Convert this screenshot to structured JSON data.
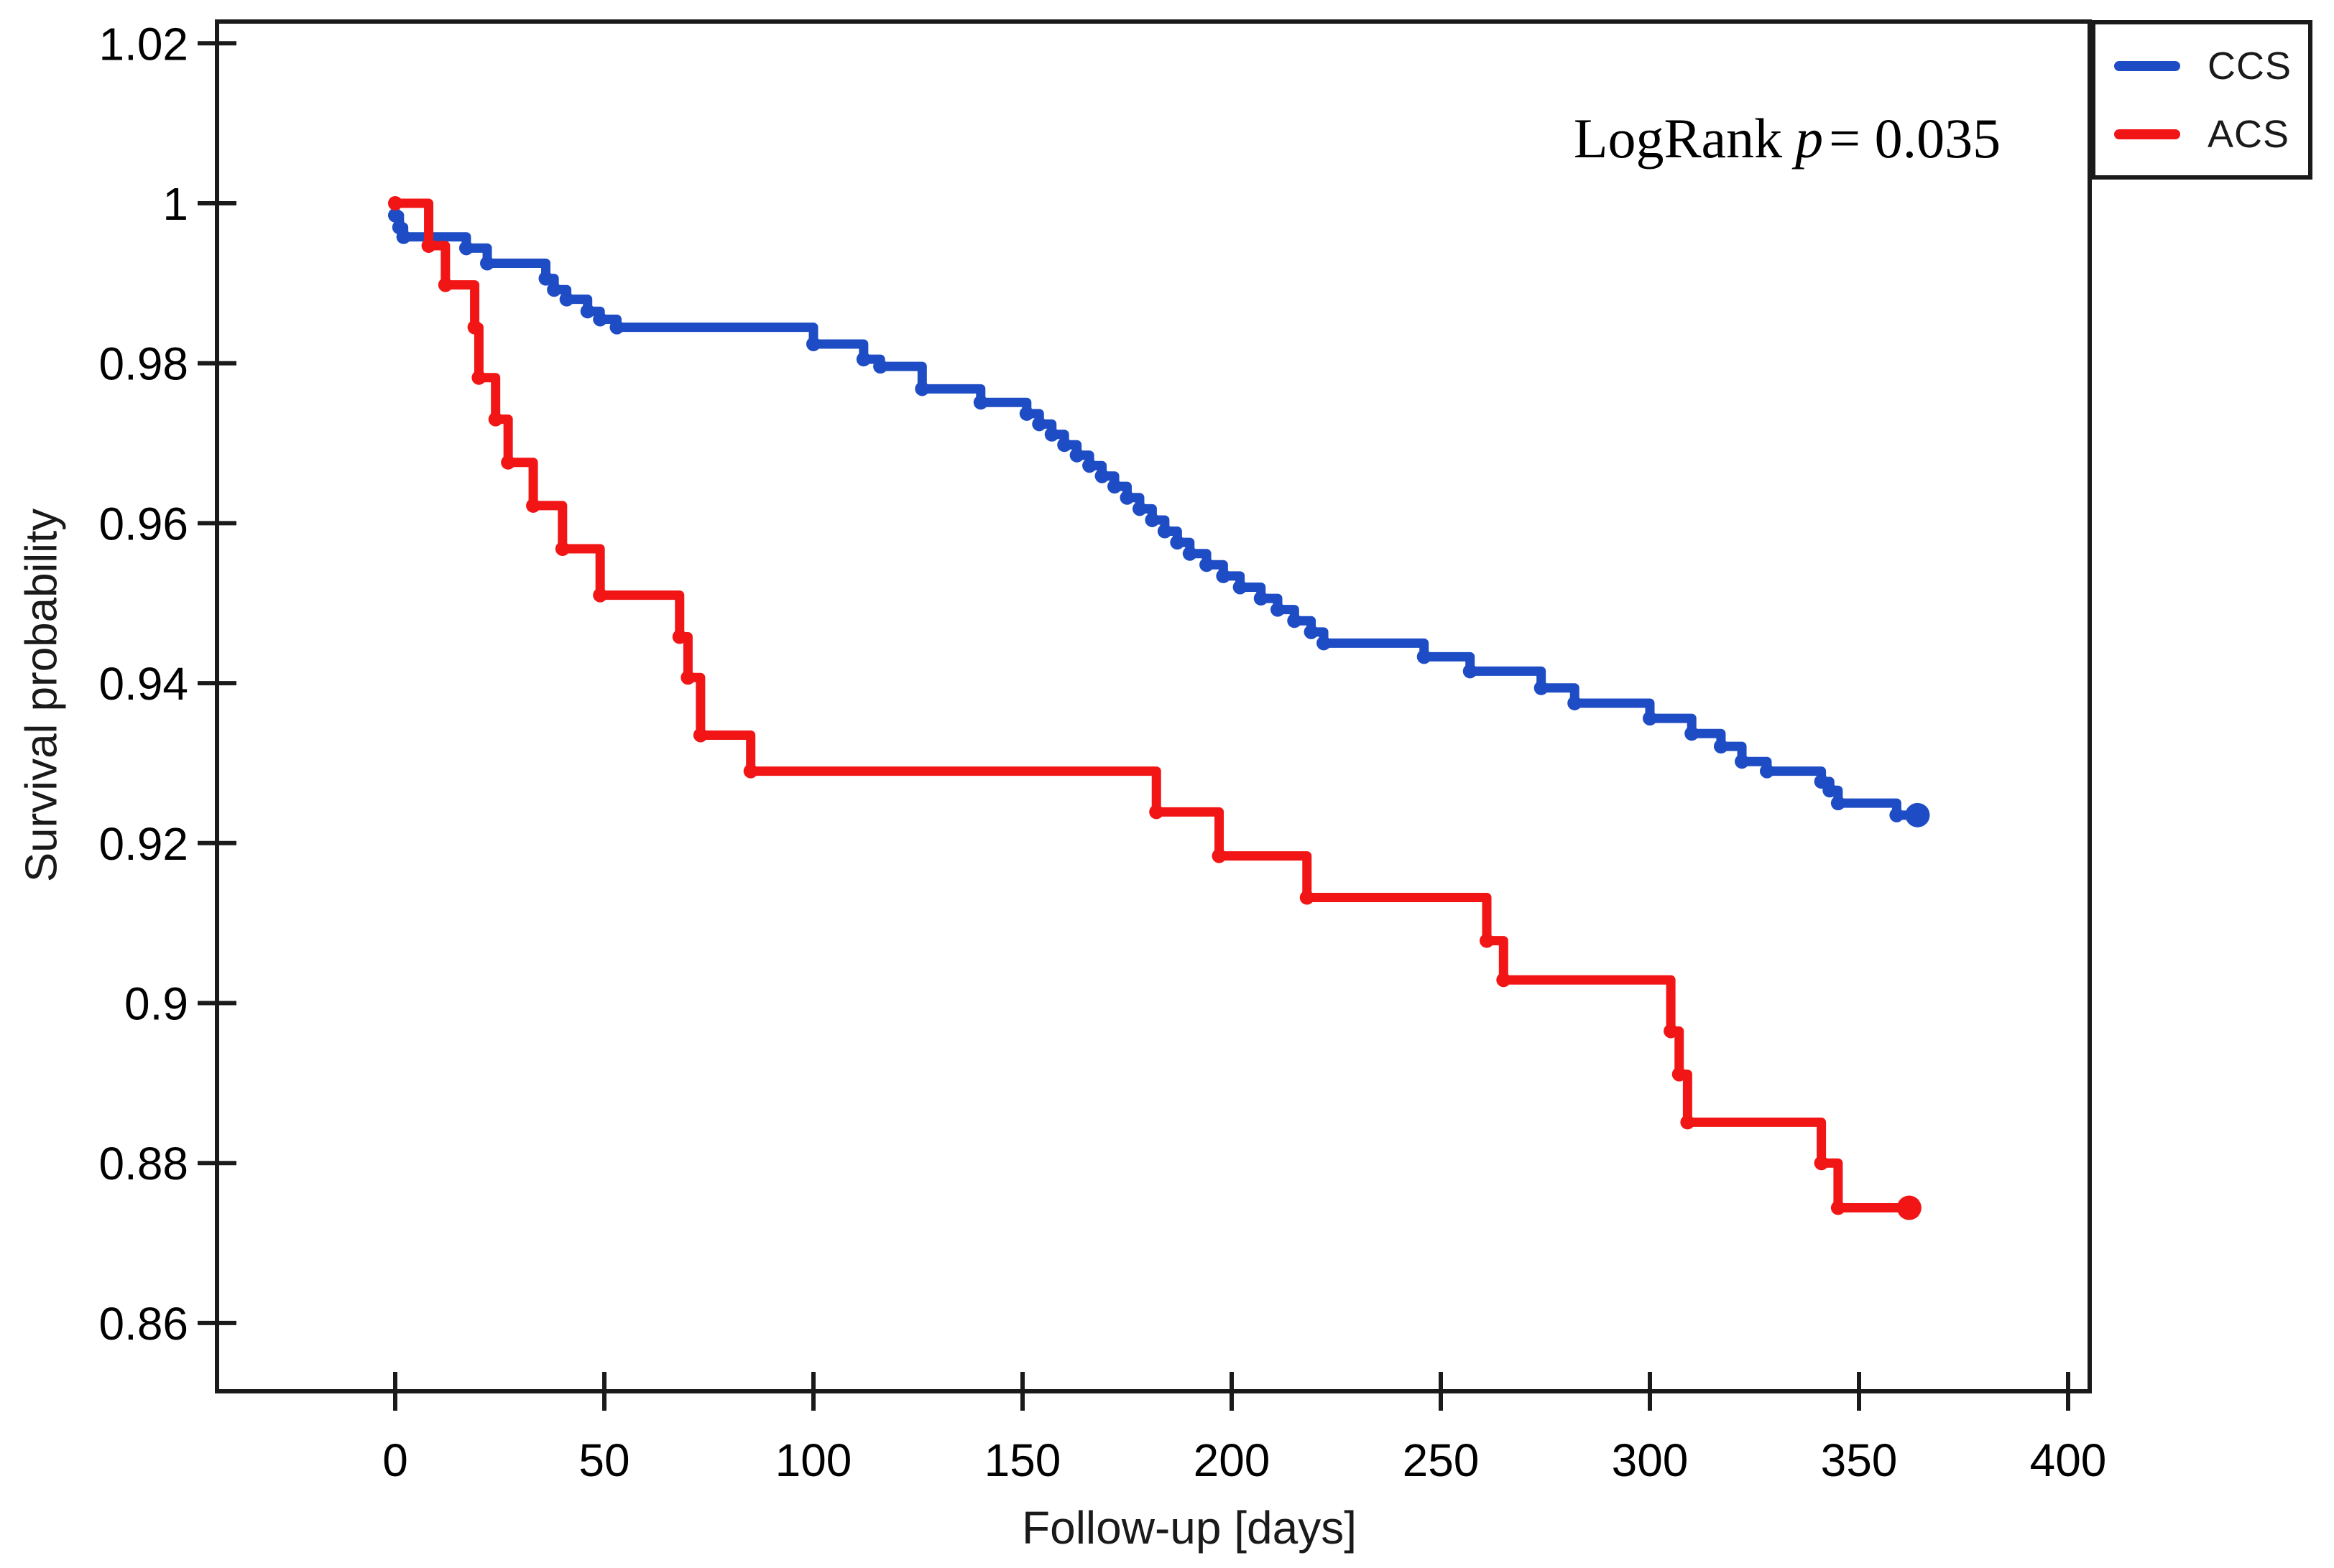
{
  "page": {
    "background": "#ffffff"
  },
  "chart_data": {
    "type": "line",
    "subtype": "kaplan-meier-step",
    "title": "",
    "xlabel": "Follow-up [days]",
    "ylabel": "Survival probability",
    "grid": false,
    "axis_color": "#1a1a1a",
    "xlim": [
      -42,
      405
    ],
    "ylim": [
      0.8515,
      1.0235
    ],
    "x_ticks": [
      0,
      50,
      100,
      150,
      200,
      250,
      300,
      350,
      400
    ],
    "x_tick_labels": [
      "0",
      "50",
      "100",
      "150",
      "200",
      "250",
      "300",
      "350",
      "400"
    ],
    "y_ticks": [
      1.02,
      1.0,
      0.98,
      0.96,
      0.94,
      0.92,
      0.9,
      0.88,
      0.86
    ],
    "y_tick_labels": [
      "1.02",
      "1",
      "0.98",
      "0.96",
      "0.94",
      "0.92",
      "0.9",
      "0.88",
      "0.86"
    ],
    "annotation": {
      "prefix": "LogRank",
      "variable": "p",
      "suffix": "= 0.035"
    },
    "legend": {
      "position": "top-right",
      "entries": [
        {
          "label": "CCS",
          "color": "#1d4cc4"
        },
        {
          "label": "ACS",
          "color": "#f21515"
        }
      ]
    },
    "series": [
      {
        "name": "CCS",
        "color": "#1d4cc4",
        "points": [
          [
            0,
            0.9985
          ],
          [
            1,
            0.997
          ],
          [
            2,
            0.9958
          ],
          [
            17,
            0.9944
          ],
          [
            22,
            0.9925
          ],
          [
            36,
            0.9906
          ],
          [
            38,
            0.9892
          ],
          [
            41,
            0.988
          ],
          [
            46,
            0.9865
          ],
          [
            49,
            0.9855
          ],
          [
            53,
            0.9845
          ],
          [
            100,
            0.9824
          ],
          [
            112,
            0.9805
          ],
          [
            116,
            0.9796
          ],
          [
            126,
            0.9768
          ],
          [
            140,
            0.9751
          ],
          [
            151,
            0.9737
          ],
          [
            154,
            0.9724
          ],
          [
            157,
            0.9711
          ],
          [
            160,
            0.9698
          ],
          [
            163,
            0.9685
          ],
          [
            166,
            0.9672
          ],
          [
            169,
            0.9659
          ],
          [
            172,
            0.9646
          ],
          [
            175,
            0.9632
          ],
          [
            178,
            0.9618
          ],
          [
            181,
            0.9604
          ],
          [
            184,
            0.959
          ],
          [
            187,
            0.9576
          ],
          [
            190,
            0.9562
          ],
          [
            194,
            0.9548
          ],
          [
            198,
            0.9534
          ],
          [
            202,
            0.952
          ],
          [
            207,
            0.9506
          ],
          [
            211,
            0.9492
          ],
          [
            215,
            0.9478
          ],
          [
            219,
            0.9464
          ],
          [
            222,
            0.945
          ],
          [
            246,
            0.9433
          ],
          [
            257,
            0.9415
          ],
          [
            274,
            0.9394
          ],
          [
            282,
            0.9375
          ],
          [
            300,
            0.9356
          ],
          [
            310,
            0.9337
          ],
          [
            317,
            0.9321
          ],
          [
            322,
            0.9302
          ],
          [
            328,
            0.929
          ],
          [
            341,
            0.9277
          ],
          [
            343,
            0.9266
          ],
          [
            345,
            0.925
          ],
          [
            359,
            0.9235
          ],
          [
            364,
            0.9235
          ]
        ]
      },
      {
        "name": "ACS",
        "color": "#f21515",
        "points": [
          [
            0,
            1.0
          ],
          [
            8,
            0.9947
          ],
          [
            12,
            0.9898
          ],
          [
            19,
            0.9845
          ],
          [
            20,
            0.9782
          ],
          [
            24,
            0.973
          ],
          [
            27,
            0.9676
          ],
          [
            33,
            0.9622
          ],
          [
            40,
            0.9568
          ],
          [
            49,
            0.951
          ],
          [
            68,
            0.9458
          ],
          [
            70,
            0.9407
          ],
          [
            73,
            0.9335
          ],
          [
            85,
            0.929
          ],
          [
            182,
            0.9239
          ],
          [
            197,
            0.9184
          ],
          [
            218,
            0.9132
          ],
          [
            261,
            0.9078
          ],
          [
            265,
            0.9029
          ],
          [
            305,
            0.8965
          ],
          [
            307,
            0.8911
          ],
          [
            309,
            0.8851
          ],
          [
            341,
            0.88
          ],
          [
            345,
            0.8744
          ],
          [
            362,
            0.8744
          ]
        ]
      }
    ]
  }
}
